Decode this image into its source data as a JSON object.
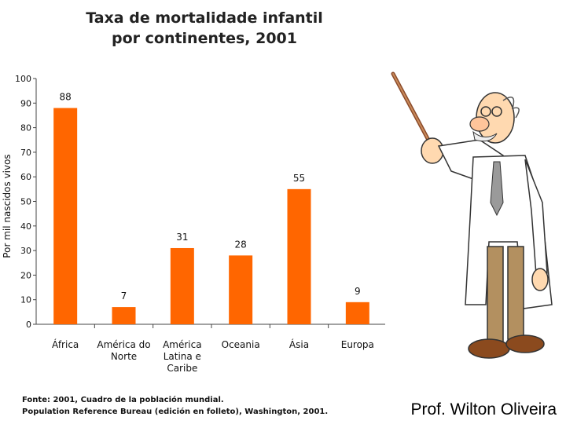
{
  "chart_data": {
    "type": "bar",
    "title_line1": "Taxa de mortalidade infantil",
    "title_line2": "por continentes, 2001",
    "ylabel": "Por mil nascidos vivos",
    "xlabel": "",
    "ylim": [
      0,
      100
    ],
    "yticks": [
      "0",
      "10",
      "20",
      "30",
      "40",
      "50",
      "60",
      "70",
      "80",
      "90",
      "100"
    ],
    "categories": [
      [
        "África"
      ],
      [
        "América do",
        "Norte"
      ],
      [
        "América",
        "Latina e",
        "Caribe"
      ],
      [
        "Oceania"
      ],
      [
        "Ásia"
      ],
      [
        "Europa"
      ]
    ],
    "values": [
      88,
      7,
      31,
      28,
      55,
      9
    ],
    "data_labels": [
      "88",
      "7",
      "31",
      "28",
      "55",
      "9"
    ],
    "bar_color": "#ff6600",
    "grid": false
  },
  "source": {
    "line1": "Fonte: 2001, Cuadro de la población mundial.",
    "line2": "Population Reference Bureau (edición en folleto), Washington, 2001."
  },
  "author": "Prof. Wilton Oliveira",
  "illustration": {
    "icon": "professor-with-pointer-icon"
  }
}
